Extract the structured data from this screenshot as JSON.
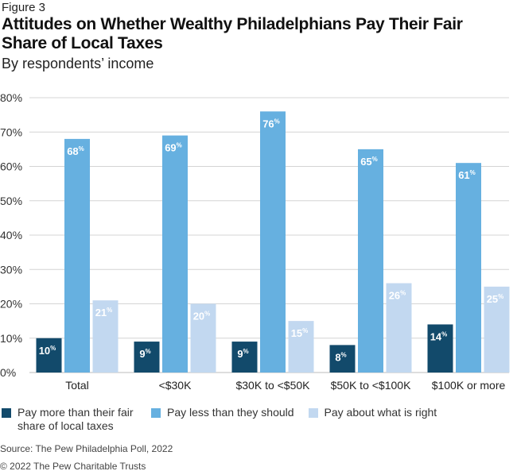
{
  "figure_label": "Figure 3",
  "chart_data": {
    "type": "bar",
    "title": "Attitudes on Whether Wealthy Philadelphians Pay Their Fair Share of Local Taxes",
    "subtitle": "By respondents’ income",
    "categories": [
      "Total",
      "<$30K",
      "$30K to <$50K",
      "$50K to <$100K",
      "$100K or more"
    ],
    "series": [
      {
        "name": "Pay more than their fair share of local taxes",
        "color": "#124a6b",
        "values": [
          10,
          9,
          9,
          8,
          14
        ]
      },
      {
        "name": "Pay less than they should",
        "color": "#66b0e0",
        "values": [
          68,
          69,
          76,
          65,
          61
        ]
      },
      {
        "name": "Pay about what is right",
        "color": "#c2d8f0",
        "values": [
          21,
          20,
          15,
          26,
          25
        ]
      }
    ],
    "ylim": [
      0,
      80
    ],
    "yticks": [
      "0%",
      "10%",
      "20%",
      "30%",
      "40%",
      "50%",
      "60%",
      "70%",
      "80%"
    ],
    "grid": true,
    "legend_position": "bottom",
    "value_suffix": "%"
  },
  "source": "Source: The Pew Philadelphia Poll, 2022",
  "copyright": "© 2022 The Pew Charitable Trusts"
}
